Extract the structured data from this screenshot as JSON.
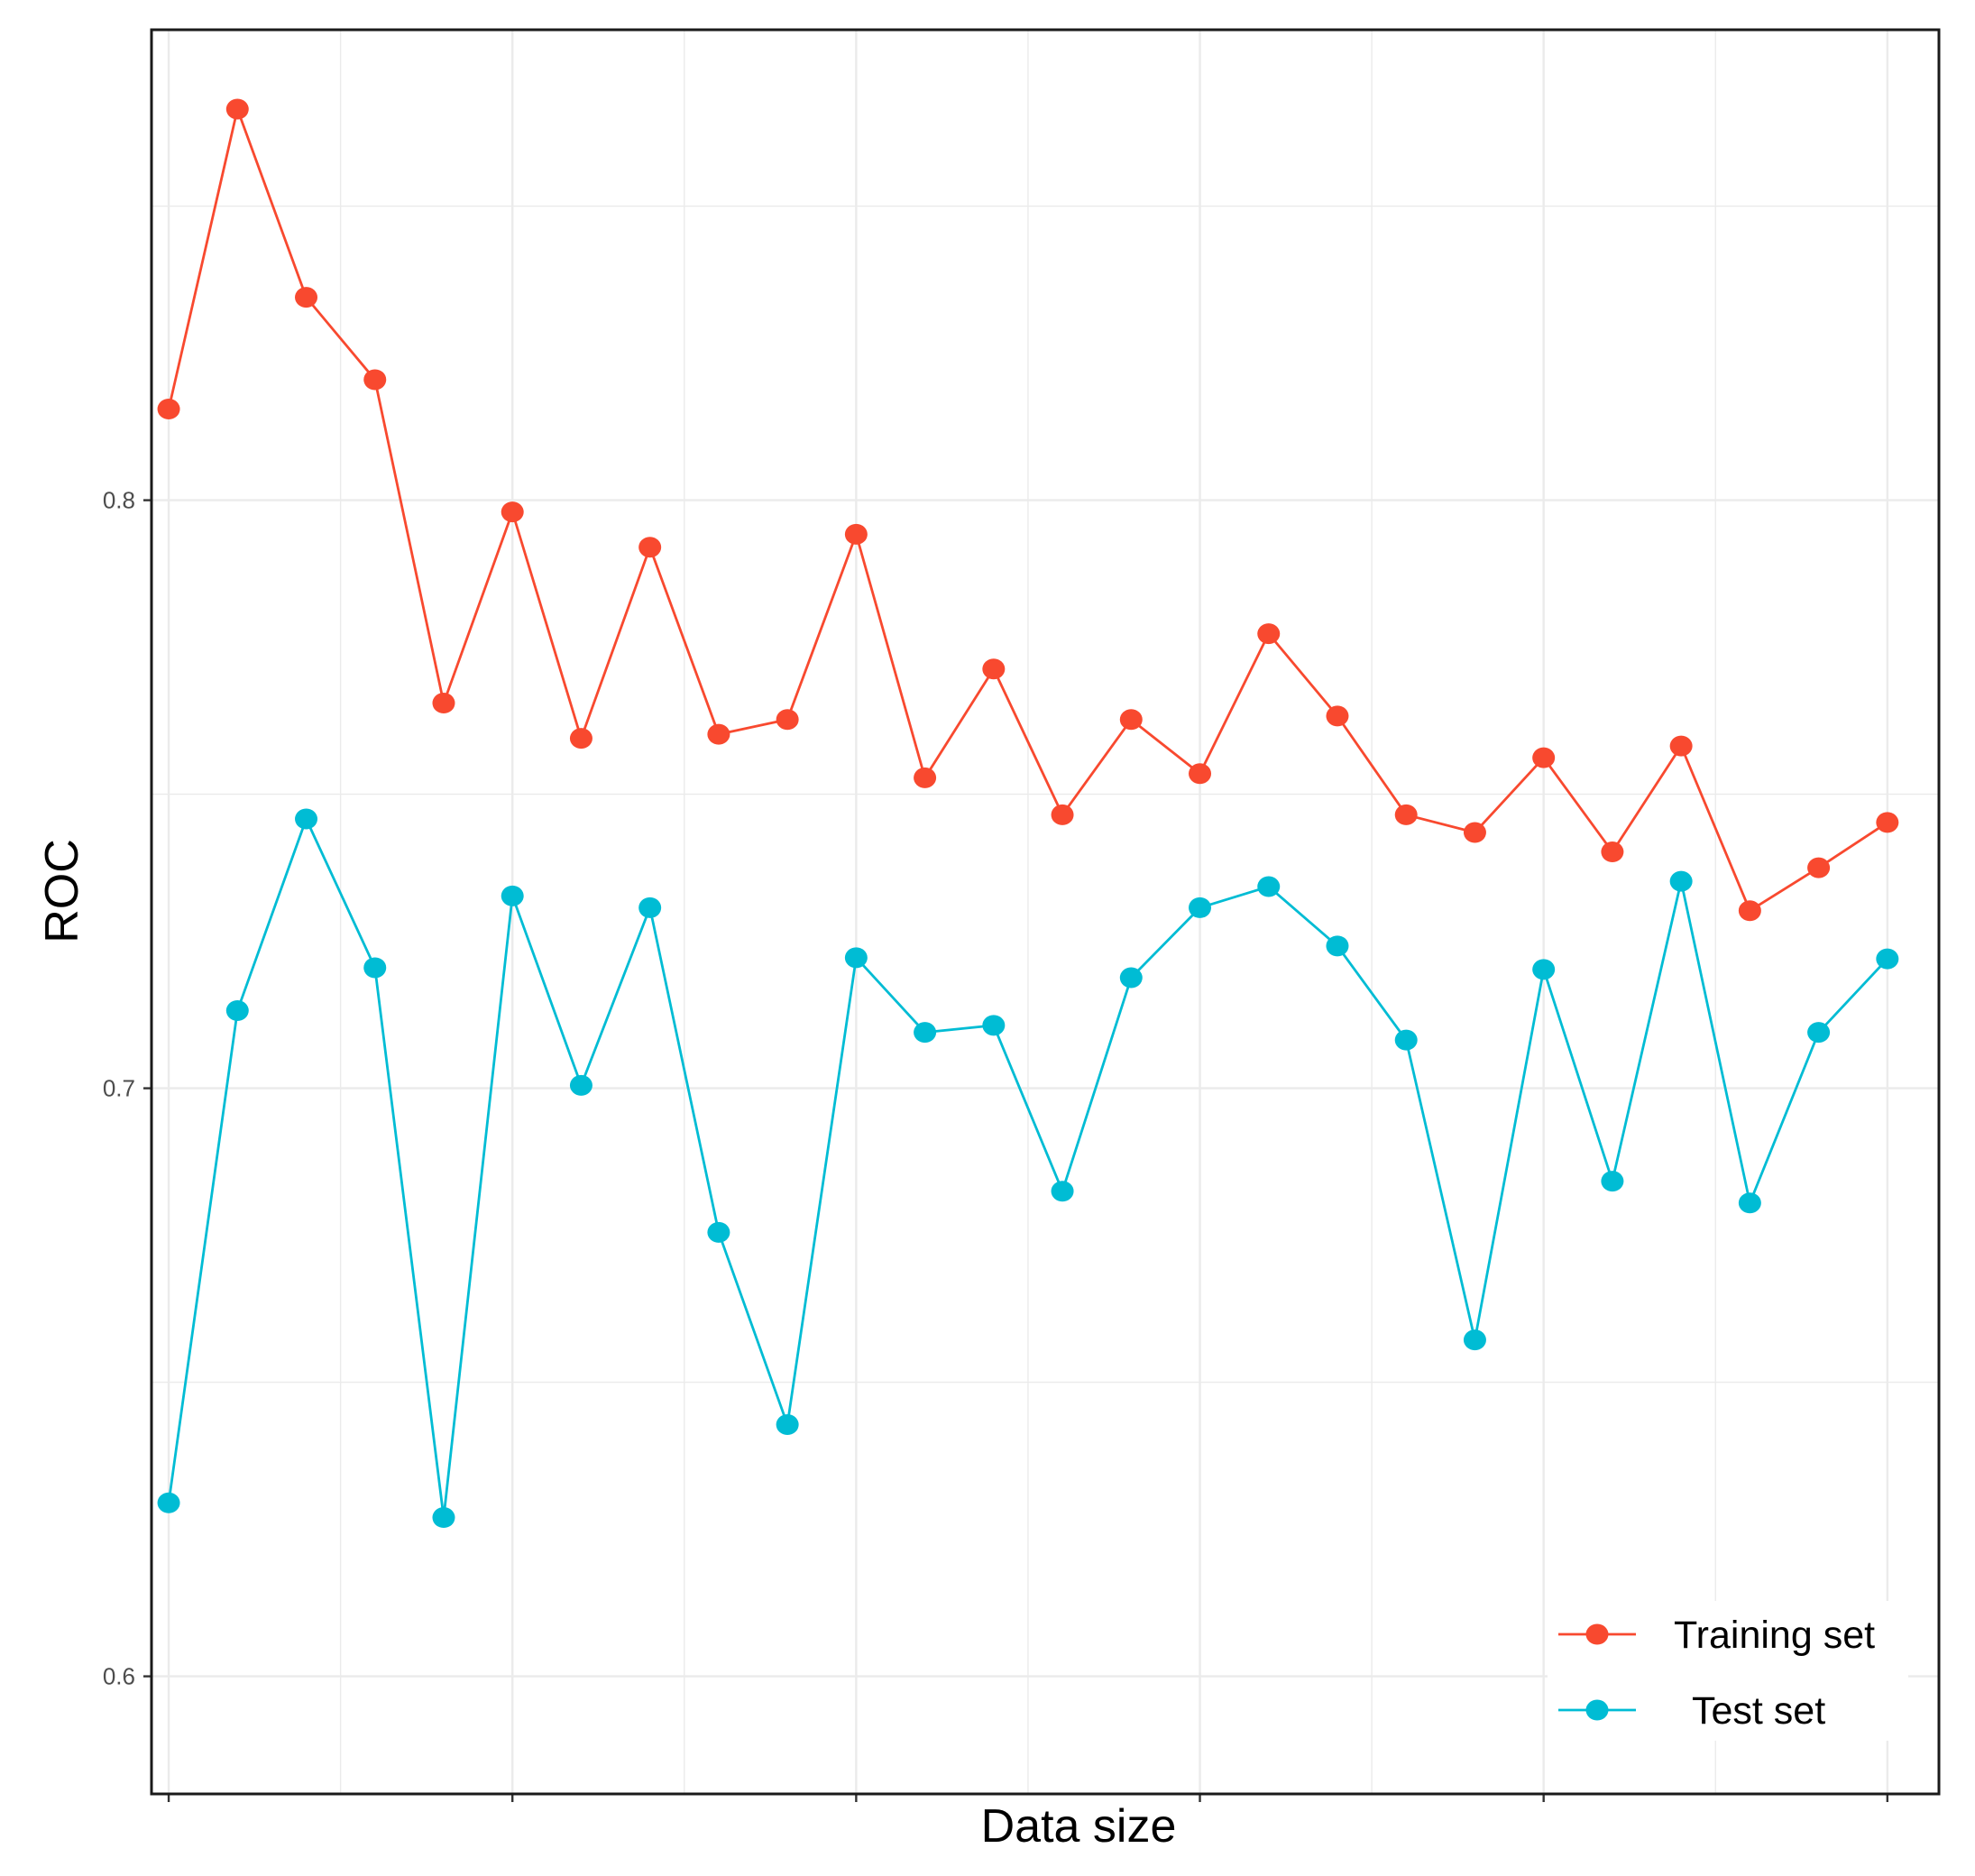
{
  "chart_data": {
    "type": "line",
    "xlabel": "Data size",
    "ylabel": "ROC",
    "ylim": [
      0.58,
      0.88
    ],
    "yticks": [
      0.6,
      0.7,
      0.8
    ],
    "ytick_labels": [
      "0.6",
      "0.7",
      "0.8"
    ],
    "xlim": [
      0.75,
      26.75
    ],
    "x": [
      1,
      2,
      3,
      4,
      5,
      6,
      7,
      8,
      9,
      10,
      11,
      12,
      13,
      14,
      15,
      16,
      17,
      18,
      19,
      20,
      21,
      22,
      23,
      24,
      25,
      26
    ],
    "grid": true,
    "legend_position": "bottom-right",
    "series": [
      {
        "name": "Training set",
        "color": "#f8492f",
        "values": [
          0.8155,
          0.8665,
          0.8345,
          0.8205,
          0.7655,
          0.798,
          0.7595,
          0.792,
          0.7602,
          0.7627,
          0.7942,
          0.7528,
          0.7713,
          0.7465,
          0.7627,
          0.7535,
          0.7773,
          0.7633,
          0.7465,
          0.7435,
          0.7562,
          0.7402,
          0.7582,
          0.7302,
          0.7375,
          0.7452
        ]
      },
      {
        "name": "Test set",
        "color": "#00bcd4",
        "values": [
          0.6295,
          0.7132,
          0.7458,
          0.7205,
          0.627,
          0.7327,
          0.7005,
          0.7307,
          0.6755,
          0.6428,
          0.7222,
          0.7095,
          0.7107,
          0.6825,
          0.7188,
          0.7307,
          0.7343,
          0.7242,
          0.7082,
          0.6572,
          0.7202,
          0.6842,
          0.7352,
          0.6805,
          0.7095,
          0.722
        ]
      }
    ]
  }
}
